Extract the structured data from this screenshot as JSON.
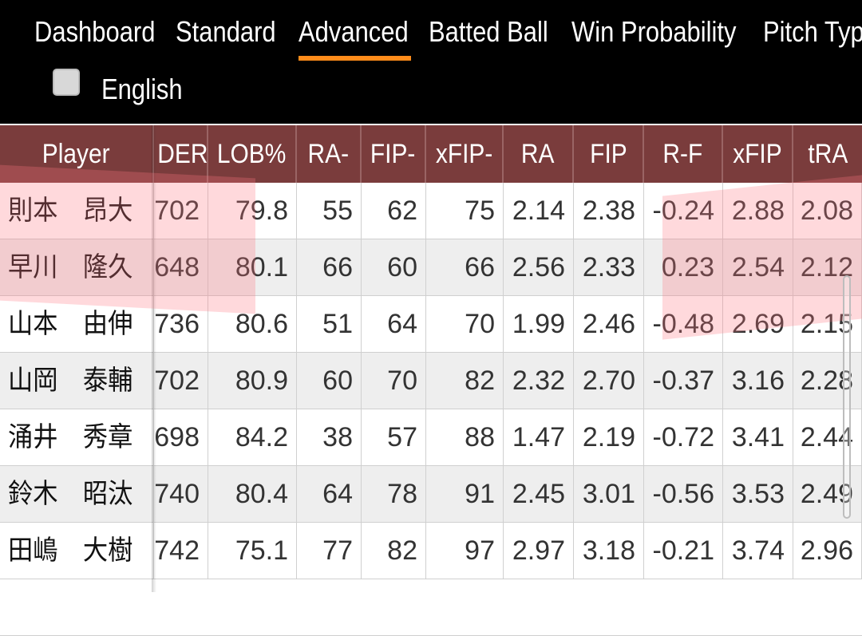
{
  "tabs": [
    {
      "label": "Dashboard"
    },
    {
      "label": "Standard"
    },
    {
      "label": "Advanced"
    },
    {
      "label": "Batted Ball"
    },
    {
      "label": "Win Probability"
    },
    {
      "label": "Pitch Typ"
    }
  ],
  "active_tab": "Advanced",
  "language_toggle": {
    "label": "English",
    "checked": false
  },
  "table": {
    "columns": [
      "Player",
      "DER",
      "LOB%",
      "RA-",
      "FIP-",
      "xFIP-",
      "RA",
      "FIP",
      "R-F",
      "xFIP",
      "tRA"
    ],
    "rows": [
      [
        "則本　昂大",
        "702",
        "79.8",
        "55",
        "62",
        "75",
        "2.14",
        "2.38",
        "-0.24",
        "2.88",
        "2.08"
      ],
      [
        "早川　隆久",
        "648",
        "80.1",
        "66",
        "60",
        "66",
        "2.56",
        "2.33",
        "0.23",
        "2.54",
        "2.12"
      ],
      [
        "山本　由伸",
        "736",
        "80.6",
        "51",
        "64",
        "70",
        "1.99",
        "2.46",
        "-0.48",
        "2.69",
        "2.15"
      ],
      [
        "山岡　泰輔",
        "702",
        "80.9",
        "60",
        "70",
        "82",
        "2.32",
        "2.70",
        "-0.37",
        "3.16",
        "2.28"
      ],
      [
        "涌井　秀章",
        "698",
        "84.2",
        "38",
        "57",
        "88",
        "1.47",
        "2.19",
        "-0.72",
        "3.41",
        "2.44"
      ],
      [
        "鈴木　昭汰",
        "740",
        "80.4",
        "64",
        "78",
        "91",
        "2.45",
        "3.01",
        "-0.56",
        "3.53",
        "2.49"
      ],
      [
        "田嶋　大樹",
        "742",
        "75.1",
        "77",
        "82",
        "97",
        "2.97",
        "3.18",
        "-0.21",
        "3.74",
        "2.96"
      ]
    ]
  },
  "colors": {
    "topbar": "#000000",
    "header": "#7a3c3c",
    "active_underline": "#ff8c1a",
    "highlight": "#ff7882"
  }
}
